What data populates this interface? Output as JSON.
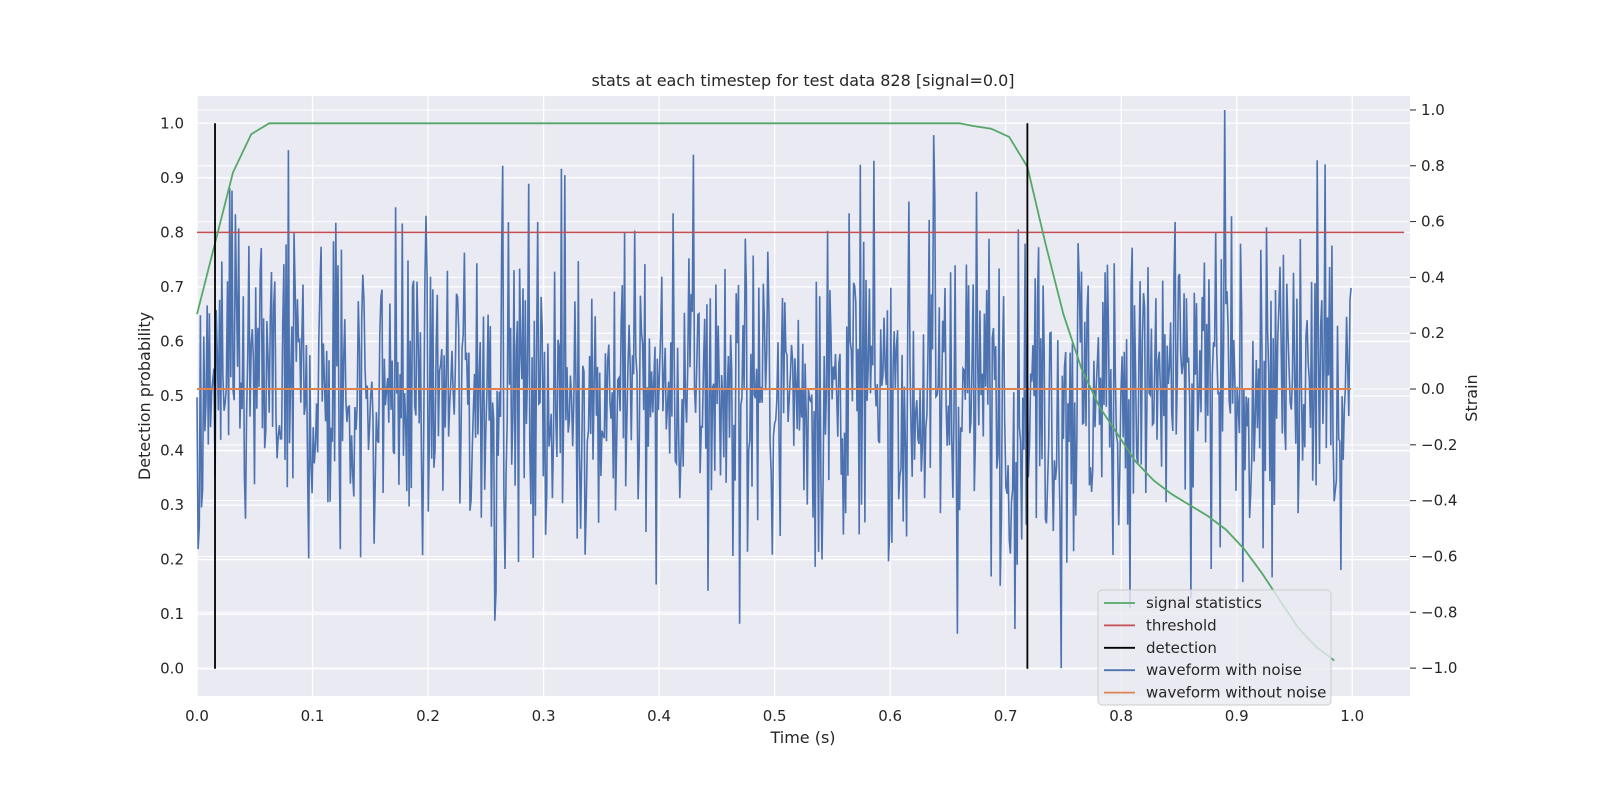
{
  "chart_data": {
    "type": "line",
    "title": "stats at each timestep for test data 828 [signal=0.0]",
    "xlabel": "Time (s)",
    "ylabel": "Detection probability",
    "ylabel_right": "Strain",
    "xlim": [
      0.0,
      1.05
    ],
    "ylim_left": [
      -0.05,
      1.05
    ],
    "ylim_right": [
      -1.1,
      1.05
    ],
    "xticks": [
      "0.0",
      "0.1",
      "0.2",
      "0.3",
      "0.4",
      "0.5",
      "0.6",
      "0.7",
      "0.8",
      "0.9",
      "1.0"
    ],
    "yticks_left": [
      "0.0",
      "0.1",
      "0.2",
      "0.3",
      "0.4",
      "0.5",
      "0.6",
      "0.7",
      "0.8",
      "0.9",
      "1.0"
    ],
    "yticks_right": [
      "−1.0",
      "−0.8",
      "−0.6",
      "−0.4",
      "−0.2",
      "0.0",
      "0.2",
      "0.4",
      "0.6",
      "0.8",
      "1.0"
    ],
    "grid": true,
    "legend_position": "lower-right",
    "colors": {
      "signal_statistics": "#55a868",
      "threshold": "#c44e52",
      "detection": "#000000",
      "waveform_with_noise": "#4c72b0",
      "waveform_without_noise": "#dd8452",
      "background": "#eaeaf2",
      "grid": "#ffffff"
    },
    "series": [
      {
        "name": "signal statistics",
        "axis": "left",
        "x": [
          0.0,
          0.0156,
          0.0312,
          0.0469,
          0.0625,
          0.0781,
          0.0938,
          0.1094,
          0.125,
          0.2,
          0.3,
          0.4,
          0.5,
          0.6,
          0.64,
          0.66,
          0.672,
          0.6875,
          0.7031,
          0.7188,
          0.7344,
          0.75,
          0.7656,
          0.7812,
          0.7969,
          0.8125,
          0.8281,
          0.8438,
          0.8594,
          0.875,
          0.8906,
          0.9062,
          0.9219,
          0.9375,
          0.9531,
          0.9688,
          0.9844
        ],
        "y": [
          0.65,
          0.78,
          0.91,
          0.98,
          1.0,
          1.0,
          1.0,
          1.0,
          1.0,
          1.0,
          1.0,
          1.0,
          1.0,
          1.0,
          1.0,
          1.0,
          0.995,
          0.99,
          0.975,
          0.92,
          0.78,
          0.65,
          0.55,
          0.48,
          0.43,
          0.38,
          0.345,
          0.32,
          0.3,
          0.28,
          0.255,
          0.22,
          0.175,
          0.125,
          0.075,
          0.04,
          0.015
        ]
      },
      {
        "name": "threshold",
        "axis": "left",
        "x": [
          0.0,
          1.045
        ],
        "y": [
          0.8,
          0.8
        ]
      },
      {
        "name": "detection",
        "axis": "left",
        "vlines_x": [
          0.0156,
          0.7188
        ],
        "y_range": [
          0.0,
          1.0
        ]
      },
      {
        "name": "waveform with noise",
        "axis": "right",
        "x_range": [
          0.0,
          0.999
        ],
        "sample_count": 1024,
        "y_min": -1.0,
        "y_max": 1.0,
        "peak_markers": [
          {
            "x": 0.028,
            "y": 0.72
          },
          {
            "x": 0.265,
            "y": 0.8
          },
          {
            "x": 0.43,
            "y": 0.84
          },
          {
            "x": 0.638,
            "y": 0.91
          },
          {
            "x": 0.89,
            "y": 1.0
          },
          {
            "x": 0.97,
            "y": 0.82
          },
          {
            "x": 0.258,
            "y": -0.83
          },
          {
            "x": 0.708,
            "y": -0.86
          },
          {
            "x": 0.748,
            "y": -1.0
          },
          {
            "x": 0.86,
            "y": -0.75
          }
        ]
      },
      {
        "name": "waveform without noise",
        "axis": "right",
        "x": [
          0.0,
          0.999
        ],
        "y": [
          0.0,
          0.0
        ]
      }
    ],
    "legend": [
      {
        "label": "signal statistics",
        "color": "#55a868"
      },
      {
        "label": "threshold",
        "color": "#c44e52"
      },
      {
        "label": "detection",
        "color": "#000000"
      },
      {
        "label": "waveform with noise",
        "color": "#4c72b0"
      },
      {
        "label": "waveform without noise",
        "color": "#dd8452"
      }
    ]
  }
}
